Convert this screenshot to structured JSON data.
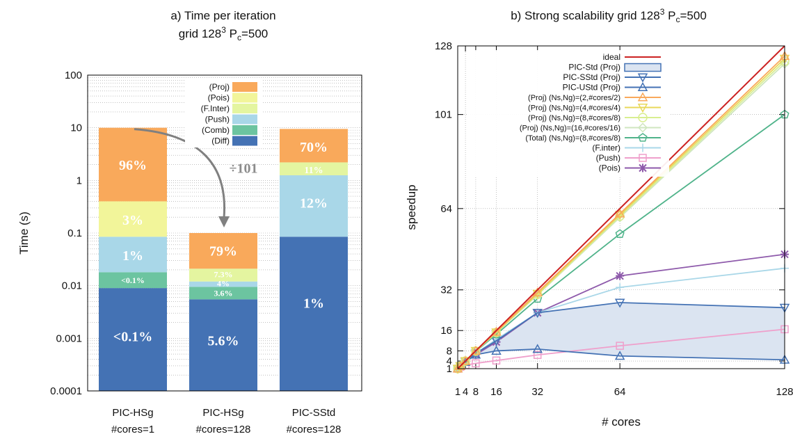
{
  "chart_data": [
    {
      "type": "bar",
      "title": "a) Time per iteration",
      "subtitle_parts": [
        "grid 128",
        "3",
        " P",
        "c",
        "=500"
      ],
      "ylabel": "Time (s)",
      "y_scale": "log",
      "ylim": [
        0.0001,
        100
      ],
      "y_ticks": [
        "0.0001",
        "0.001",
        "0.01",
        "0.1",
        "1",
        "10",
        "100"
      ],
      "y_tick_values": [
        0.0001,
        0.001,
        0.01,
        0.1,
        1,
        10,
        100
      ],
      "categories": [
        [
          "PIC-HSg",
          "#cores=1"
        ],
        [
          "PIC-HSg",
          "#cores=128"
        ],
        [
          "PIC-SStd",
          "#cores=128"
        ]
      ],
      "stack_order": [
        "Diff",
        "Comb",
        "Push",
        "F.Inter",
        "Pois",
        "Proj"
      ],
      "legend": [
        {
          "label": "(Proj)",
          "color": "#f9a95b"
        },
        {
          "label": "(Pois)",
          "color": "#f2f59a"
        },
        {
          "label": "(F.Inter)",
          "color": "#e4f5a0"
        },
        {
          "label": "(Push)",
          "color": "#a9d7e8"
        },
        {
          "label": "(Comb)",
          "color": "#6cc4a0"
        },
        {
          "label": "(Diff)",
          "color": "#4472b4"
        }
      ],
      "colors": {
        "Diff": "#4472b4",
        "Comb": "#6cc4a0",
        "Push": "#a9d7e8",
        "F.Inter": "#e4f5a0",
        "Pois": "#f2f59a",
        "Proj": "#f9a95b"
      },
      "stacks": [
        {
          "tops": {
            "Diff": 0.009,
            "Comb": 0.018,
            "Push": 0.085,
            "F.Inter": 0.085,
            "Pois": 0.4,
            "Proj": 10
          }
        },
        {
          "tops": {
            "Diff": 0.0055,
            "Comb": 0.0095,
            "Push": 0.012,
            "F.Inter": 0.021,
            "Pois": 0.021,
            "Proj": 0.1
          }
        },
        {
          "tops": {
            "Diff": 0.085,
            "Comb": 0.085,
            "Push": 1.25,
            "F.Inter": 2.2,
            "Pois": 2.2,
            "Proj": 9.5
          }
        }
      ],
      "labels": [
        {
          "bar": 0,
          "text": "96%",
          "y": 2.0,
          "size": 20
        },
        {
          "bar": 0,
          "text": "3%",
          "y": 0.18,
          "size": 20
        },
        {
          "bar": 0,
          "text": "1%",
          "y": 0.038,
          "size": 20
        },
        {
          "bar": 0,
          "text": "<0.1%",
          "y": 0.0128,
          "size": 12
        },
        {
          "bar": 0,
          "text": "<0.1%",
          "y": 0.0011,
          "size": 20
        },
        {
          "bar": 1,
          "text": "79%",
          "y": 0.046,
          "size": 20
        },
        {
          "bar": 1,
          "text": "7.3%",
          "y": 0.0165,
          "size": 12
        },
        {
          "bar": 1,
          "text": "4%",
          "y": 0.0112,
          "size": 12
        },
        {
          "bar": 1,
          "text": "3.6%",
          "y": 0.0073,
          "size": 12
        },
        {
          "bar": 1,
          "text": "5.6%",
          "y": 0.00092,
          "size": 20
        },
        {
          "bar": 2,
          "text": "70%",
          "y": 4.4,
          "size": 20
        },
        {
          "bar": 2,
          "text": "11%",
          "y": 1.6,
          "size": 14
        },
        {
          "bar": 2,
          "text": "12%",
          "y": 0.38,
          "size": 20
        },
        {
          "bar": 2,
          "text": "1%",
          "y": 0.0047,
          "size": 20
        }
      ],
      "annotation": {
        "text": "÷101",
        "from_bar": 0,
        "to_bar": 1
      }
    },
    {
      "type": "line",
      "title_parts": [
        "b) Strong scalability grid 128",
        "3",
        " P",
        "c",
        "=500"
      ],
      "xlabel": "# cores",
      "ylabel": "speedup",
      "xlim": [
        1,
        128
      ],
      "ylim": [
        1,
        128
      ],
      "x_ticks": [
        "1",
        "4",
        "8",
        "16",
        "32",
        "64",
        "128"
      ],
      "x_tick_values": [
        1,
        4,
        8,
        16,
        32,
        64,
        128
      ],
      "y_ticks": [
        "1",
        "4",
        "8",
        "16",
        "32",
        "64",
        "101",
        "128"
      ],
      "y_tick_values": [
        1,
        4,
        8,
        16,
        32,
        64,
        101,
        128
      ],
      "shaded_band": {
        "between": [
          "PIC-SStd (Proj)",
          "PIC-UStd (Proj)"
        ],
        "color": "#dbe4f1"
      },
      "series": [
        {
          "name": "ideal",
          "color": "#cc2222",
          "marker": "none",
          "x": [
            1,
            128
          ],
          "y": [
            1,
            128
          ]
        },
        {
          "name": "PIC-Std (Proj)",
          "color": "#4472b4",
          "marker": "box",
          "x": [],
          "y": []
        },
        {
          "name": "PIC-SStd (Proj)",
          "color": "#4472b4",
          "marker": "triangle-down",
          "x": [
            1,
            2,
            4,
            8,
            16,
            32,
            64,
            128
          ],
          "y": [
            1,
            2,
            3.8,
            7,
            12,
            23,
            27,
            25
          ]
        },
        {
          "name": "PIC-UStd (Proj)",
          "color": "#4472b4",
          "marker": "triangle-up",
          "x": [
            1,
            2,
            4,
            8,
            16,
            32,
            64,
            128
          ],
          "y": [
            1,
            2,
            3.6,
            6.5,
            8,
            8.7,
            6,
            4.5
          ]
        },
        {
          "name": "(Proj) (Ns,Ng)=(2,#cores/2)",
          "color": "#f9a95b",
          "marker": "triangle-up",
          "x": [
            1,
            2,
            4,
            8,
            16,
            32,
            64,
            128
          ],
          "y": [
            1,
            2,
            4,
            8,
            15.5,
            31,
            62,
            124
          ]
        },
        {
          "name": "(Proj) (Ns,Ng)=(4,#cores/4)",
          "color": "#e8d85a",
          "marker": "triangle-down",
          "x": [
            1,
            2,
            4,
            8,
            16,
            32,
            64,
            128
          ],
          "y": [
            1,
            2,
            4,
            8,
            15.3,
            30.5,
            61.5,
            123
          ]
        },
        {
          "name": "(Proj) (Ns,Ng)=(8,#cores/8)",
          "color": "#d8ee90",
          "marker": "circle",
          "x": [
            1,
            2,
            4,
            8,
            16,
            32,
            64,
            128
          ],
          "y": [
            1,
            2,
            4,
            7.9,
            15.2,
            30.2,
            61,
            122
          ]
        },
        {
          "name": "(Proj) (Ns,Ng)=(16,#cores/16)",
          "color": "#cfe6bf",
          "marker": "diamond",
          "x": [
            1,
            2,
            4,
            8,
            16,
            32,
            64,
            128
          ],
          "y": [
            1,
            2,
            4,
            7.9,
            15.1,
            30,
            60.5,
            121
          ]
        },
        {
          "name": "(Total) (Ns,Ng)=(8,#cores/8)",
          "color": "#4fb38a",
          "marker": "pentagon",
          "x": [
            1,
            2,
            4,
            8,
            16,
            32,
            64,
            128
          ],
          "y": [
            1,
            2,
            4,
            7.8,
            14.5,
            28.5,
            54,
            101
          ]
        },
        {
          "name": "(F.inter)",
          "color": "#a9d7e8",
          "marker": "plus",
          "x": [
            1,
            2,
            4,
            8,
            16,
            32,
            64,
            128
          ],
          "y": [
            1,
            2,
            3.8,
            7,
            12.5,
            23,
            33,
            40.5
          ]
        },
        {
          "name": "(Push)",
          "color": "#ef9fcb",
          "marker": "square",
          "x": [
            1,
            2,
            4,
            8,
            16,
            32,
            64,
            128
          ],
          "y": [
            1,
            1.7,
            2.4,
            3.1,
            4.2,
            6.4,
            10,
            16.5
          ]
        },
        {
          "name": "(Pois)",
          "color": "#8e5aab",
          "marker": "asterisk",
          "x": [
            1,
            2,
            4,
            8,
            16,
            32,
            64,
            128
          ],
          "y": [
            1,
            2,
            3.8,
            6.5,
            11.5,
            23,
            37.5,
            46
          ]
        }
      ]
    }
  ]
}
